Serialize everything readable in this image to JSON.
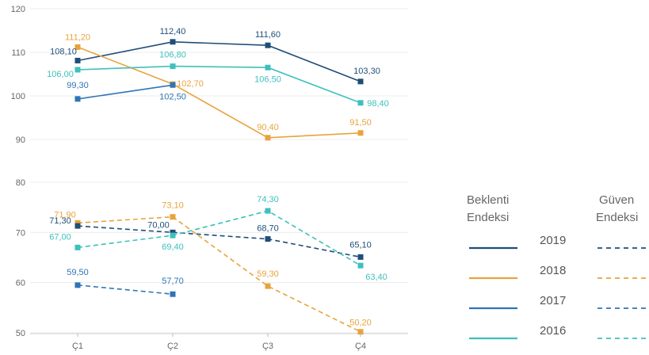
{
  "chart_data": {
    "type": "line",
    "categories": [
      "Ç1",
      "Ç2",
      "Ç3",
      "Ç4"
    ],
    "y_ticks_upper": [
      "120",
      "110",
      "100",
      "90"
    ],
    "y_ticks_lower": [
      "80",
      "70",
      "60",
      "50"
    ],
    "ylim_upper": [
      90,
      120
    ],
    "ylim_lower": [
      50,
      80
    ],
    "grid": true,
    "legend": {
      "position": "bottom-right",
      "solid_header": "Beklenti Endeksi",
      "dashed_header": "Güven Endeksi",
      "years": [
        "2019",
        "2018",
        "2017",
        "2016"
      ]
    },
    "series": [
      {
        "year": "2019",
        "index": "Beklenti Endeksi",
        "color": "#1f4e79",
        "dashed": false,
        "values": [
          108.1,
          112.4,
          111.6,
          103.3
        ],
        "labels": [
          "108,10",
          "112,40",
          "111,60",
          "103,30"
        ]
      },
      {
        "year": "2018",
        "index": "Beklenti Endeksi",
        "color": "#e8a33c",
        "dashed": false,
        "values": [
          111.2,
          102.7,
          90.4,
          91.5
        ],
        "labels": [
          "111,20",
          "102,70",
          "90,40",
          "91,50"
        ]
      },
      {
        "year": "2017",
        "index": "Beklenti Endeksi",
        "color": "#2e75b6",
        "dashed": false,
        "values": [
          99.3,
          102.5,
          null,
          null
        ],
        "labels": [
          "99,30",
          "102,50",
          "",
          ""
        ]
      },
      {
        "year": "2016",
        "index": "Beklenti Endeksi",
        "color": "#3ec0bd",
        "dashed": false,
        "values": [
          106.0,
          106.8,
          106.5,
          98.4
        ],
        "labels": [
          "106,00",
          "106,80",
          "106,50",
          "98,40"
        ]
      },
      {
        "year": "2019",
        "index": "Güven Endeksi",
        "color": "#2e75b6",
        "dashed": true,
        "values": [
          59.5,
          57.7,
          null,
          null
        ],
        "labels": [
          "59,50",
          "57,70",
          "",
          ""
        ]
      },
      {
        "year": "2018",
        "index": "Güven Endeksi",
        "color": "#e8a33c",
        "dashed": true,
        "values": [
          71.9,
          73.1,
          59.3,
          50.2
        ],
        "labels": [
          "71,90",
          "73,10",
          "59,30",
          "50,20"
        ]
      },
      {
        "year": "2017",
        "index": "Güven Endeksi",
        "color": "#1f4e79",
        "dashed": true,
        "values": [
          71.3,
          70.0,
          68.7,
          65.1
        ],
        "labels": [
          "71,30",
          "70,00",
          "68,70",
          "65,10"
        ]
      },
      {
        "year": "2016",
        "index": "Güven Endeksi",
        "color": "#3ec0bd",
        "dashed": true,
        "values": [
          67.0,
          69.4,
          74.3,
          63.4
        ],
        "labels": [
          "67,00",
          "69,40",
          "74,30",
          "63,40"
        ]
      }
    ],
    "legend_colors": {
      "2019": "#1f4e79",
      "2018": "#e8a33c",
      "2017": "#2e75b6",
      "2016": "#3ec0bd"
    }
  }
}
